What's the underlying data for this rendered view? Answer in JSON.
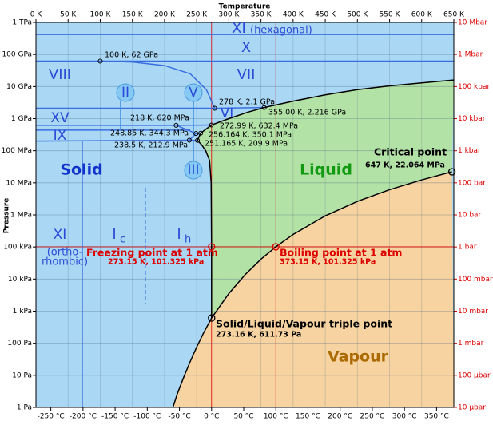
{
  "chart_data": {
    "type": "phase-diagram",
    "x_label": "Temperature",
    "y_label": "Pressure",
    "xlim": [
      0,
      650
    ],
    "xticks": [
      {
        "value": 0,
        "label": "0 K"
      },
      {
        "value": 50,
        "label": "50 K"
      },
      {
        "value": 100,
        "label": "100 K"
      },
      {
        "value": 150,
        "label": "150 K"
      },
      {
        "value": 200,
        "label": "200 K"
      },
      {
        "value": 250,
        "label": "250 K"
      },
      {
        "value": 300,
        "label": "300 K"
      },
      {
        "value": 350,
        "label": "350 K"
      },
      {
        "value": 400,
        "label": "400 K"
      },
      {
        "value": 450,
        "label": "450 K"
      },
      {
        "value": 500,
        "label": "500 K"
      },
      {
        "value": 550,
        "label": "550 K"
      },
      {
        "value": 600,
        "label": "600 K"
      },
      {
        "value": 650,
        "label": "650 K"
      }
    ],
    "x2lim": [
      -273.15,
      376.85
    ],
    "x2ticks": [
      {
        "value": -250,
        "label": "-250 °C"
      },
      {
        "value": -200,
        "label": "-200 °C"
      },
      {
        "value": -150,
        "label": "-150 °C"
      },
      {
        "value": -100,
        "label": "-100 °C"
      },
      {
        "value": -50,
        "label": "-50 °C"
      },
      {
        "value": 0,
        "label": "0 °C"
      },
      {
        "value": 50,
        "label": "50 °C"
      },
      {
        "value": 100,
        "label": "100 °C"
      },
      {
        "value": 150,
        "label": "150 °C"
      },
      {
        "value": 200,
        "label": "200 °C"
      },
      {
        "value": 250,
        "label": "250 °C"
      },
      {
        "value": 300,
        "label": "300 °C"
      },
      {
        "value": 350,
        "label": "350 °C"
      }
    ],
    "ylim": [
      1,
      1000000000000.0
    ],
    "log_y": true,
    "yticks": [
      {
        "value": 1,
        "label": "1 Pa"
      },
      {
        "value": 10,
        "label": "10 Pa"
      },
      {
        "value": 100,
        "label": "100 Pa"
      },
      {
        "value": 1000,
        "label": "1 kPa"
      },
      {
        "value": 10000,
        "label": "10 kPa"
      },
      {
        "value": 100000,
        "label": "100 kPa"
      },
      {
        "value": 1000000,
        "label": "1 MPa"
      },
      {
        "value": 10000000,
        "label": "10 MPa"
      },
      {
        "value": 100000000,
        "label": "100 MPa"
      },
      {
        "value": 1000000000,
        "label": "1 GPa"
      },
      {
        "value": 10000000000,
        "label": "10 GPa"
      },
      {
        "value": 100000000000,
        "label": "100 GPa"
      },
      {
        "value": 1000000000000,
        "label": "1 TPa"
      }
    ],
    "y2lim": [
      1e-05,
      10000000.0
    ],
    "y2ticks": [
      {
        "value": 1e-05,
        "label": "10 µbar"
      },
      {
        "value": 0.0001,
        "label": "100 µbar"
      },
      {
        "value": 0.001,
        "label": "1 mbar"
      },
      {
        "value": 0.01,
        "label": "10 mbar"
      },
      {
        "value": 0.1,
        "label": "100 mbar"
      },
      {
        "value": 1,
        "label": "1 bar"
      },
      {
        "value": 10,
        "label": "10 bar"
      },
      {
        "value": 100,
        "label": "100 bar"
      },
      {
        "value": 1000,
        "label": "1 kbar"
      },
      {
        "value": 10000,
        "label": "10 kbar"
      },
      {
        "value": 100000,
        "label": "100 kbar"
      },
      {
        "value": 1000000,
        "label": "1 Mbar"
      },
      {
        "value": 10000000,
        "label": "10 Mbar"
      }
    ],
    "grid": true,
    "phases": [
      {
        "name": "Solid",
        "color": "#a9d7f4"
      },
      {
        "name": "Liquid",
        "color": "#b3e2a6"
      },
      {
        "name": "Vapour",
        "color": "#f6d3a0"
      }
    ],
    "boundaries": {
      "sublimation": {
        "x": [
          213,
          220,
          230,
          240,
          250,
          260,
          273.16
        ],
        "y": [
          1,
          2.7,
          8.9,
          27,
          76,
          196,
          611.73
        ]
      },
      "vaporization": {
        "x": [
          273.16,
          300,
          325,
          350,
          373.15,
          400,
          450,
          500,
          550,
          600,
          647
        ],
        "y": [
          611.73,
          3537,
          13500,
          41700,
          101325,
          245600,
          932000,
          2639000,
          6117000,
          12340000,
          22064000
        ]
      },
      "melting_ih": {
        "x": [
          273.16,
          273.15,
          272.5,
          270,
          264,
          258,
          251.165
        ],
        "y": [
          611.73,
          101325,
          10000000,
          50000000,
          100000000,
          150000000,
          209900000
        ]
      },
      "ice_iii_liquid": {
        "x": [
          251.165,
          256.164
        ],
        "y": [
          209900000,
          350100000
        ]
      },
      "ice_v_liquid": {
        "x": [
          256.164,
          272.99
        ],
        "y": [
          350100000,
          632400000
        ]
      },
      "ice_vi_liquid": {
        "x": [
          272.99,
          300,
          330,
          355
        ],
        "y": [
          632400000,
          1000000000,
          1600000000,
          2216000000
        ]
      },
      "ice_vii_liquid": {
        "x": [
          355,
          400,
          450,
          500,
          550,
          600,
          650
        ],
        "y": [
          2216000000,
          3500000000,
          5500000000,
          8000000000,
          10500000000,
          13000000000,
          16000000000
        ]
      }
    },
    "solid_boundaries": [
      {
        "x": [
          0,
          650
        ],
        "y": [
          420000000000,
          420000000000
        ]
      },
      {
        "x": [
          0,
          650
        ],
        "y": [
          62000000000,
          62000000000
        ]
      },
      {
        "x": [
          100,
          150,
          200,
          240,
          265,
          278
        ],
        "y": [
          62000000000,
          58000000000,
          45000000000,
          25000000000,
          8000000000,
          2100000000
        ]
      },
      {
        "x": [
          278,
          355
        ],
        "y": [
          2100000000,
          2216000000
        ]
      },
      {
        "x": [
          0,
          278
        ],
        "y": [
          2100000000,
          2100000000
        ]
      },
      {
        "x": [
          0,
          218
        ],
        "y": [
          620000000,
          620000000
        ]
      },
      {
        "x": [
          218,
          272.99
        ],
        "y": [
          620000000,
          632400000
        ]
      },
      {
        "x": [
          218,
          248.85
        ],
        "y": [
          620000000,
          344300000
        ]
      },
      {
        "x": [
          238.5,
          248.85
        ],
        "y": [
          212900000,
          344300000
        ]
      },
      {
        "x": [
          248.85,
          256.164
        ],
        "y": [
          344300000,
          350100000
        ]
      },
      {
        "x": [
          238.5,
          251.165
        ],
        "y": [
          212900000,
          209900000
        ]
      },
      {
        "x": [
          0,
          238.5
        ],
        "y": [
          200000000,
          212900000
        ]
      },
      {
        "x": [
          0,
          240
        ],
        "y": [
          440000000,
          440000000
        ]
      },
      {
        "x": [
          72,
          72
        ],
        "y": [
          1,
          200000000
        ]
      },
      {
        "x": [
          170,
          170
        ],
        "y": [
          7000000,
          1700
        ],
        "dashed": true
      }
    ],
    "points": [
      {
        "label": "100 K, 62 GPa",
        "x": 100,
        "y": 62000000000,
        "color": "#000000"
      },
      {
        "label": "278 K, 2.1 GPa",
        "x": 278,
        "y": 2100000000,
        "color": "#000000"
      },
      {
        "label": "355.00 K, 2.216 GPa",
        "x": 355,
        "y": 2216000000,
        "color": "#000000"
      },
      {
        "label": "218 K, 620 MPa",
        "x": 218,
        "y": 620000000,
        "color": "#000000"
      },
      {
        "label": "272.99 K, 632.4 MPa",
        "x": 272.99,
        "y": 632400000,
        "color": "#000000"
      },
      {
        "label": "248.85 K, 344.3 MPa",
        "x": 248.85,
        "y": 344300000,
        "color": "#000000"
      },
      {
        "label": "256.164 K, 350.1 MPa",
        "x": 256.164,
        "y": 350100000,
        "color": "#000000"
      },
      {
        "label": "238.5 K, 212.9 MPa",
        "x": 238.5,
        "y": 212900000,
        "color": "#000000"
      },
      {
        "label": "251.165 K, 209.9 MPa",
        "x": 251.165,
        "y": 209900000,
        "color": "#000000"
      },
      {
        "title": "Critical point",
        "label": "647 K, 22.064 MPa",
        "x": 647,
        "y": 22064000,
        "color": "#000000"
      },
      {
        "title": "Freezing point at 1 atm",
        "label": "273.15 K, 101.325 kPa",
        "x": 273.15,
        "y": 101325,
        "color": "#dd0000"
      },
      {
        "title": "Boiling point at 1 atm",
        "label": "373.15 K, 101.325 kPa",
        "x": 373.15,
        "y": 101325,
        "color": "#dd0000"
      },
      {
        "title": "Solid/Liquid/Vapour triple point",
        "label": "273.16 K, 611.73 Pa",
        "x": 273.16,
        "y": 611.73,
        "color": "#000000"
      }
    ],
    "ice_labels": [
      "XI",
      "(hexagonal)",
      "X",
      "VIII",
      "VII",
      "II",
      "V",
      "VI",
      "XV",
      "IX",
      "III",
      "XI",
      "(ortho-",
      "rhombic)",
      "I",
      "c",
      "I",
      "h"
    ]
  }
}
